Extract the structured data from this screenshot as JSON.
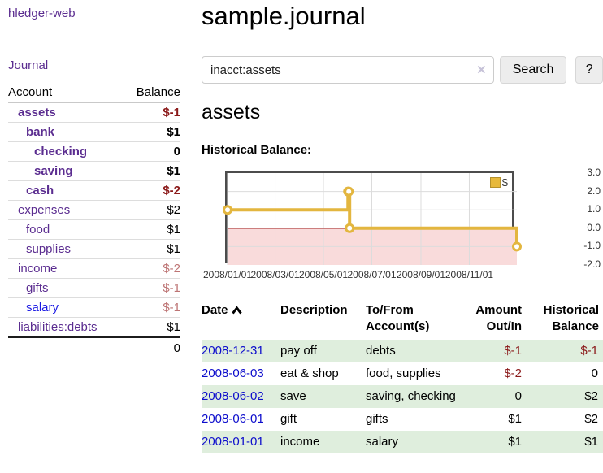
{
  "colors": {
    "purple": "#5b2d90",
    "unvisited_link": "#1b1ae3",
    "date_blue": "#0d0dcc",
    "neg_strong": "#8b1a1a",
    "neg_muted": "#bd7474",
    "row_green": "#dfeedd",
    "button_bg": "#ededed",
    "clear_gray": "#c6c2d8"
  },
  "sidebar": {
    "brand": "hledger-web",
    "journal_link": "Journal",
    "accounts_table": {
      "account_header": "Account",
      "balance_header": "Balance",
      "rows": [
        {
          "name": "assets",
          "depth": 1,
          "bold": true,
          "balance": "$-1"
        },
        {
          "name": "bank",
          "depth": 2,
          "bold": true,
          "balance": "$1"
        },
        {
          "name": "checking",
          "depth": 3,
          "bold": true,
          "balance": "0"
        },
        {
          "name": "saving",
          "depth": 3,
          "bold": true,
          "balance": "$1"
        },
        {
          "name": "cash",
          "depth": 2,
          "bold": true,
          "balance": "$-2"
        },
        {
          "name": "expenses",
          "depth": 1,
          "bold": false,
          "balance": "$2"
        },
        {
          "name": "food",
          "depth": 2,
          "bold": false,
          "balance": "$1"
        },
        {
          "name": "supplies",
          "depth": 2,
          "bold": false,
          "balance": "$1"
        },
        {
          "name": "income",
          "depth": 1,
          "bold": false,
          "balance": "$-2"
        },
        {
          "name": "gifts",
          "depth": 2,
          "bold": false,
          "balance": "$-1"
        },
        {
          "name": "salary",
          "depth": 2,
          "bold": false,
          "balance": "$-1",
          "link_color": "#1b1ae3"
        },
        {
          "name": "liabilities:debts",
          "depth": 1,
          "bold": false,
          "balance": "$1"
        }
      ],
      "total": "0"
    }
  },
  "main": {
    "title": "sample.journal",
    "search": {
      "query": "inacct:assets",
      "clear_icon": "✕",
      "search_button": "Search",
      "help_button": "?"
    },
    "account_heading": "assets",
    "chart_heading": "Historical Balance:",
    "transactions": {
      "columns": [
        "Date",
        "Description",
        "To/From Account(s)",
        "Amount Out/In",
        "Historical Balance"
      ],
      "col_align": [
        "l",
        "l",
        "l",
        "r",
        "r"
      ],
      "rows": [
        {
          "date": "2008-12-31",
          "description": "pay off",
          "accounts": "debts",
          "amount": "$-1",
          "balance": "$-1"
        },
        {
          "date": "2008-06-03",
          "description": "eat & shop",
          "accounts": "food, supplies",
          "amount": "$-2",
          "balance": "0"
        },
        {
          "date": "2008-06-02",
          "description": "save",
          "accounts": "saving, checking",
          "amount": "0",
          "balance": "$2"
        },
        {
          "date": "2008-06-01",
          "description": "gift",
          "accounts": "gifts",
          "amount": "$1",
          "balance": "$2"
        },
        {
          "date": "2008-01-01",
          "description": "income",
          "accounts": "salary",
          "amount": "$1",
          "balance": "$1"
        }
      ]
    }
  },
  "chart_data": {
    "type": "line",
    "step": true,
    "title": "Historical Balance",
    "x_start": "2008/01/01",
    "x_end": "2008/12/31",
    "points": [
      {
        "date": "2008/01/01",
        "balance": 1
      },
      {
        "date": "2008/06/01",
        "balance": 2
      },
      {
        "date": "2008/06/02",
        "balance": 2
      },
      {
        "date": "2008/06/03",
        "balance": 0
      },
      {
        "date": "2008/12/31",
        "balance": -1
      }
    ],
    "x_ticks": [
      "2008/01/01",
      "2008/03/01",
      "2008/05/01",
      "2008/07/01",
      "2008/09/01",
      "2008/11/01"
    ],
    "y_ticks": [
      3.0,
      2.0,
      1.0,
      0.0,
      -1.0,
      -2.0
    ],
    "ylim": [
      -2,
      3
    ],
    "grid": true,
    "legend": {
      "label": "$",
      "position": "top-right",
      "swatch_color": "#e7b93c"
    },
    "colors": {
      "line": "#e3b63f",
      "marker_fill": "#ffffff",
      "negative_region": "#f9dbdb",
      "zero_line": "#9e2222",
      "gridline": "#dcdcdc",
      "border": "#4c4c4c"
    }
  }
}
